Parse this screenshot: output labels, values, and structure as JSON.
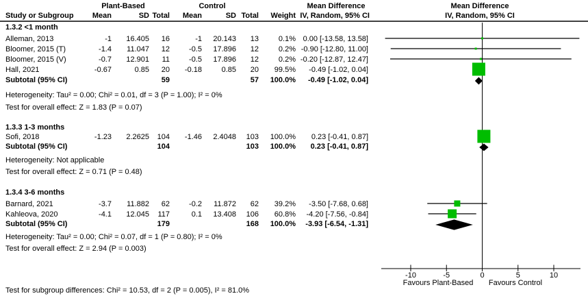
{
  "header": {
    "group_plant": "Plant-Based",
    "group_control": "Control",
    "study_col": "Study or Subgroup",
    "mean": "Mean",
    "sd": "SD",
    "total": "Total",
    "weight": "Weight",
    "md_title": "Mean Difference",
    "md_sub": "IV, Random, 95% CI"
  },
  "footer": {
    "subgroup_test": "Test for subgroup differences: Chi² = 10.53, df = 2 (P = 0.005), I² = 81.0%"
  },
  "chart_data": {
    "type": "forest",
    "effect_measure": "Mean Difference, IV, Random, 95% CI",
    "axis": {
      "ticks": [
        -10,
        -5,
        0,
        5,
        10
      ],
      "min": -14,
      "max": 13.7,
      "favours_left": "Favours Plant-Based",
      "favours_right": "Favours Control"
    },
    "colors": {
      "square": "#00bd00",
      "diamond": "#000000",
      "ci_line": "#000000"
    },
    "subgroups": [
      {
        "label": "1.3.2 <1 month",
        "studies": [
          {
            "name": "Alleman, 2013",
            "pb_mean": "-1",
            "pb_sd": "16.405",
            "pb_total": "16",
            "c_mean": "-1",
            "c_sd": "20.143",
            "c_total": "13",
            "weight": "0.1%",
            "weight_pct": 0.1,
            "md_text": "0.00 [-13.58, 13.58]",
            "md": 0.0,
            "ci_low": -13.58,
            "ci_high": 13.58
          },
          {
            "name": "Bloomer, 2015 (T)",
            "pb_mean": "-1.4",
            "pb_sd": "11.047",
            "pb_total": "12",
            "c_mean": "-0.5",
            "c_sd": "17.896",
            "c_total": "12",
            "weight": "0.2%",
            "weight_pct": 0.2,
            "md_text": "-0.90 [-12.80, 11.00]",
            "md": -0.9,
            "ci_low": -12.8,
            "ci_high": 11.0
          },
          {
            "name": "Bloomer, 2015 (V)",
            "pb_mean": "-0.7",
            "pb_sd": "12.901",
            "pb_total": "11",
            "c_mean": "-0.5",
            "c_sd": "17.896",
            "c_total": "12",
            "weight": "0.2%",
            "weight_pct": 0.2,
            "md_text": "-0.20 [-12.87, 12.47]",
            "md": -0.2,
            "ci_low": -12.87,
            "ci_high": 12.47
          },
          {
            "name": "Hall, 2021",
            "pb_mean": "-0.67",
            "pb_sd": "0.85",
            "pb_total": "20",
            "c_mean": "-0.18",
            "c_sd": "0.85",
            "c_total": "20",
            "weight": "99.5%",
            "weight_pct": 99.5,
            "md_text": "-0.49 [-1.02, 0.04]",
            "md": -0.49,
            "ci_low": -1.02,
            "ci_high": 0.04
          }
        ],
        "subtotal": {
          "label": "Subtotal (95% CI)",
          "pb_total": "59",
          "c_total": "57",
          "weight": "100.0%",
          "md_text": "-0.49 [-1.02, 0.04]",
          "md": -0.49,
          "ci_low": -1.02,
          "ci_high": 0.04
        },
        "heterogeneity": "Heterogeneity: Tau² = 0.00; Chi² = 0.01, df = 3 (P = 1.00); I² = 0%",
        "overall_test": "Test for overall effect: Z = 1.83 (P = 0.07)"
      },
      {
        "label": "1.3.3 1-3 months",
        "studies": [
          {
            "name": "Sofi, 2018",
            "pb_mean": "-1.23",
            "pb_sd": "2.2625",
            "pb_total": "104",
            "c_mean": "-1.46",
            "c_sd": "2.4048",
            "c_total": "103",
            "weight": "100.0%",
            "weight_pct": 100.0,
            "md_text": "0.23 [-0.41, 0.87]",
            "md": 0.23,
            "ci_low": -0.41,
            "ci_high": 0.87
          }
        ],
        "subtotal": {
          "label": "Subtotal (95% CI)",
          "pb_total": "104",
          "c_total": "103",
          "weight": "100.0%",
          "md_text": "0.23 [-0.41, 0.87]",
          "md": 0.23,
          "ci_low": -0.41,
          "ci_high": 0.87
        },
        "heterogeneity": "Heterogeneity: Not applicable",
        "overall_test": "Test for overall effect: Z = 0.71 (P = 0.48)"
      },
      {
        "label": "1.3.4 3-6 months",
        "studies": [
          {
            "name": "Barnard, 2021",
            "pb_mean": "-3.7",
            "pb_sd": "11.882",
            "pb_total": "62",
            "c_mean": "-0.2",
            "c_sd": "11.872",
            "c_total": "62",
            "weight": "39.2%",
            "weight_pct": 39.2,
            "md_text": "-3.50 [-7.68, 0.68]",
            "md": -3.5,
            "ci_low": -7.68,
            "ci_high": 0.68
          },
          {
            "name": "Kahleova, 2020",
            "pb_mean": "-4.1",
            "pb_sd": "12.045",
            "pb_total": "117",
            "c_mean": "0.1",
            "c_sd": "13.408",
            "c_total": "106",
            "weight": "60.8%",
            "weight_pct": 60.8,
            "md_text": "-4.20 [-7.56, -0.84]",
            "md": -4.2,
            "ci_low": -7.56,
            "ci_high": -0.84
          }
        ],
        "subtotal": {
          "label": "Subtotal (95% CI)",
          "pb_total": "179",
          "c_total": "168",
          "weight": "100.0%",
          "md_text": "-3.93 [-6.54, -1.31]",
          "md": -3.93,
          "ci_low": -6.54,
          "ci_high": -1.31
        },
        "heterogeneity": "Heterogeneity: Tau² = 0.00; Chi² = 0.07, df = 1 (P = 0.80); I² = 0%",
        "overall_test": "Test for overall effect: Z = 2.94 (P = 0.003)"
      }
    ]
  }
}
